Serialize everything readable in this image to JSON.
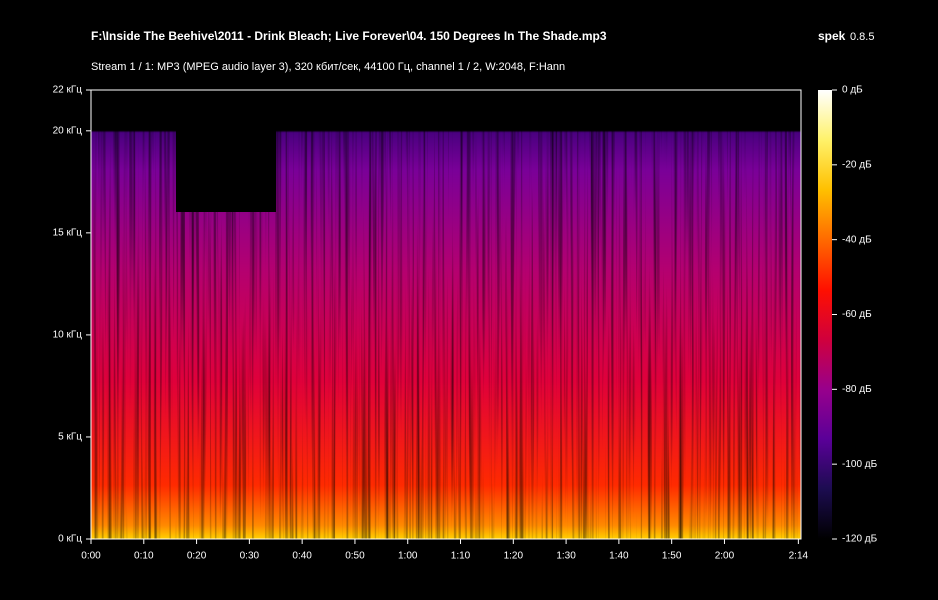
{
  "chart_data": {
    "type": "spectrogram",
    "title": "F:\\Inside The Beehive\\2011 - Drink Bleach; Live Forever\\04. 150 Degrees In The Shade.mp3",
    "app": "spek",
    "version": "0.8.5",
    "subtitle": "Stream 1 / 1: MP3 (MPEG audio layer 3), 320 кбит/сек, 44100 Гц, channel 1 / 2, W:2048, F:Hann",
    "xlim": [
      0,
      134.5
    ],
    "xticks": [
      {
        "value": 0,
        "label": "0:00"
      },
      {
        "value": 10,
        "label": "0:10"
      },
      {
        "value": 20,
        "label": "0:20"
      },
      {
        "value": 30,
        "label": "0:30"
      },
      {
        "value": 40,
        "label": "0:40"
      },
      {
        "value": 50,
        "label": "0:50"
      },
      {
        "value": 60,
        "label": "1:00"
      },
      {
        "value": 70,
        "label": "1:10"
      },
      {
        "value": 80,
        "label": "1:20"
      },
      {
        "value": 90,
        "label": "1:30"
      },
      {
        "value": 100,
        "label": "1:40"
      },
      {
        "value": 110,
        "label": "1:50"
      },
      {
        "value": 120,
        "label": "2:00"
      },
      {
        "value": 134,
        "label": "2:14"
      }
    ],
    "ylim": [
      0,
      22
    ],
    "yticks": [
      {
        "value": 0,
        "label": "0 кГц"
      },
      {
        "value": 5,
        "label": "5 кГц"
      },
      {
        "value": 10,
        "label": "10 кГц"
      },
      {
        "value": 15,
        "label": "15 кГц"
      },
      {
        "value": 20,
        "label": "20 кГц"
      },
      {
        "value": 22,
        "label": "22 кГц"
      }
    ],
    "colorbar": {
      "lim": [
        -120,
        0
      ],
      "ticks": [
        {
          "value": 0,
          "label": "0 дБ"
        },
        {
          "value": -20,
          "label": "-20 дБ"
        },
        {
          "value": -40,
          "label": "-40 дБ"
        },
        {
          "value": -60,
          "label": "-60 дБ"
        },
        {
          "value": -80,
          "label": "-80 дБ"
        },
        {
          "value": -100,
          "label": "-100 дБ"
        },
        {
          "value": -120,
          "label": "-120 дБ"
        }
      ],
      "colors": [
        "#ffffff",
        "#fff26a",
        "#ffc000",
        "#ff6a00",
        "#ff1000",
        "#d0003c",
        "#98008c",
        "#5a0098",
        "#1c0c50",
        "#000000"
      ]
    }
  }
}
